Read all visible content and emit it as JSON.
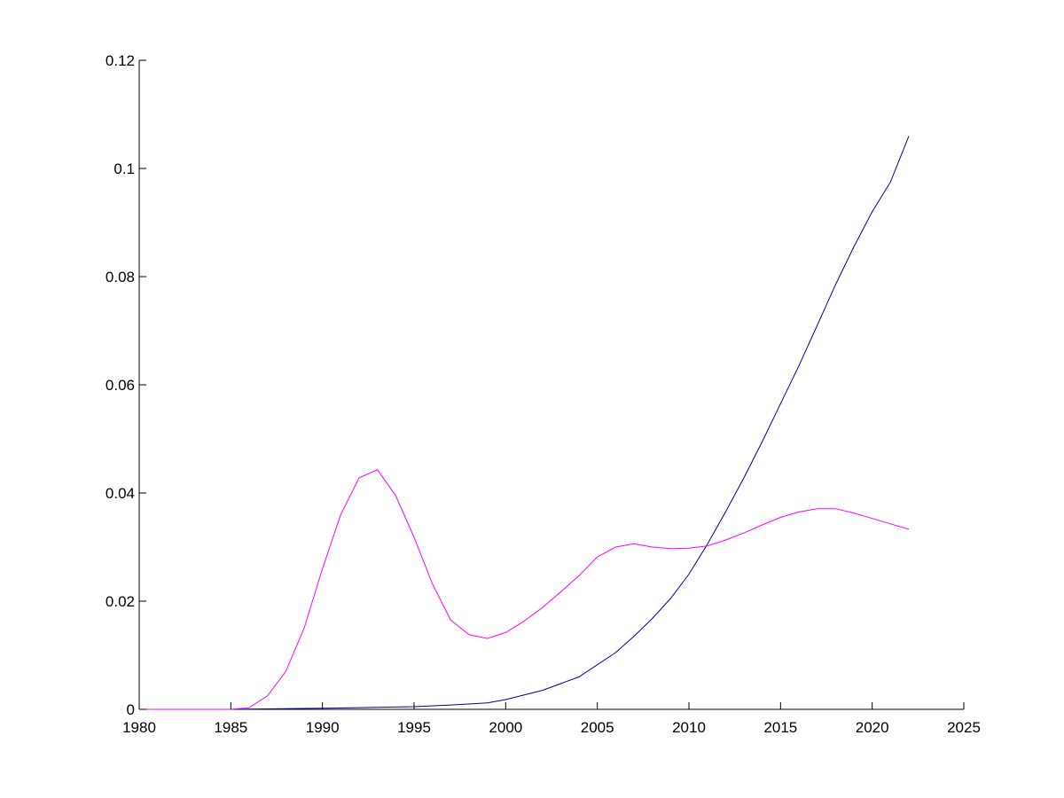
{
  "chart_data": {
    "type": "line",
    "title": "",
    "xlabel": "",
    "ylabel": "",
    "xlim": [
      1980,
      2025
    ],
    "ylim": [
      0,
      0.12
    ],
    "xticks": [
      1980,
      1985,
      1990,
      1995,
      2000,
      2005,
      2010,
      2015,
      2020,
      2025
    ],
    "xtick_labels": [
      "1980",
      "1985",
      "1990",
      "1995",
      "2000",
      "2005",
      "2010",
      "2015",
      "2020",
      "2025"
    ],
    "yticks": [
      0,
      0.02,
      0.04,
      0.06,
      0.08,
      0.1,
      0.12
    ],
    "ytick_labels": [
      "0",
      "0.02",
      "0.04",
      "0.06",
      "0.08",
      "0.1",
      "0.12"
    ],
    "grid": false,
    "legend": "none",
    "series": [
      {
        "color": "#0000a0",
        "x": [
          1980,
          1985,
          1990,
          1995,
          1997,
          1999,
          2000,
          2002,
          2004,
          2006,
          2007,
          2008,
          2009,
          2010,
          2011,
          2012,
          2013,
          2014,
          2015,
          2016,
          2017,
          2018,
          2019,
          2020,
          2021,
          2022
        ],
        "y": [
          0,
          0,
          0.0002,
          0.0005,
          0.0008,
          0.0012,
          0.0018,
          0.0035,
          0.006,
          0.0105,
          0.0135,
          0.0168,
          0.0205,
          0.025,
          0.0305,
          0.0365,
          0.0428,
          0.0495,
          0.0565,
          0.0635,
          0.071,
          0.0785,
          0.0855,
          0.092,
          0.0975,
          0.106
        ]
      },
      {
        "color": "#ff00ff",
        "x": [
          1980,
          1985,
          1986,
          1987,
          1988,
          1989,
          1990,
          1991,
          1992,
          1993,
          1994,
          1995,
          1996,
          1997,
          1998,
          1999,
          2000,
          2001,
          2002,
          2003,
          2004,
          2005,
          2006,
          2007,
          2008,
          2009,
          2010,
          2011,
          2012,
          2013,
          2014,
          2015,
          2016,
          2017,
          2018,
          2019,
          2020,
          2021,
          2022
        ],
        "y": [
          0,
          0,
          0.0003,
          0.0025,
          0.007,
          0.015,
          0.026,
          0.036,
          0.0428,
          0.0443,
          0.0395,
          0.0318,
          0.0232,
          0.0165,
          0.0138,
          0.0131,
          0.0142,
          0.0163,
          0.0188,
          0.0217,
          0.0247,
          0.0282,
          0.03,
          0.0306,
          0.03,
          0.0297,
          0.0298,
          0.0302,
          0.0313,
          0.0326,
          0.0341,
          0.0355,
          0.0365,
          0.0371,
          0.0371,
          0.0363,
          0.0353,
          0.0343,
          0.0333
        ]
      }
    ]
  }
}
